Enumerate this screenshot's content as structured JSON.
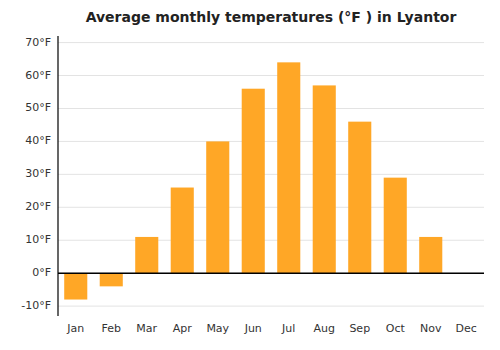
{
  "chart_data": {
    "type": "bar",
    "title": "Average monthly temperatures (°F ) in Lyantor",
    "categories": [
      "Jan",
      "Feb",
      "Mar",
      "Apr",
      "May",
      "Jun",
      "Jul",
      "Aug",
      "Sep",
      "Oct",
      "Nov",
      "Dec"
    ],
    "values": [
      -8,
      -4,
      11,
      26,
      40,
      56,
      64,
      57,
      46,
      29,
      11,
      0
    ],
    "color": "#FFA726",
    "ylim": [
      -13,
      72
    ],
    "yticks": [
      {
        "value": -10,
        "label": "-10°F"
      },
      {
        "value": 0,
        "label": "0°F"
      },
      {
        "value": 10,
        "label": "10°F"
      },
      {
        "value": 20,
        "label": "20°F"
      },
      {
        "value": 30,
        "label": "30°F"
      },
      {
        "value": 40,
        "label": "40°F"
      },
      {
        "value": 50,
        "label": "50°F"
      },
      {
        "value": 60,
        "label": "60°F"
      },
      {
        "value": 70,
        "label": "70°F"
      }
    ],
    "grid": true
  }
}
